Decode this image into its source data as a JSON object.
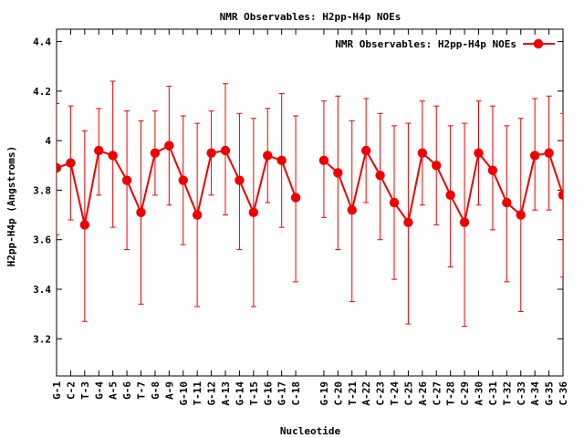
{
  "chart_data": {
    "type": "line",
    "title": "NMR Observables: H2pp-H4p NOEs",
    "xlabel": "Nucleotide",
    "ylabel": "H2pp-H4p (Angstroms)",
    "ylim": [
      3.05,
      4.45
    ],
    "yticks": [
      "3.2",
      "3.4",
      "3.6",
      "3.8",
      "4",
      "4.2",
      "4.4"
    ],
    "grid": false,
    "legend": {
      "label": "NMR Observables: H2pp-H4p NOEs",
      "position": "top-right"
    },
    "colors": {
      "series": "#ee0000",
      "axis": "#000000"
    },
    "series": [
      {
        "name": "NMR Observables: H2pp-H4p NOEs",
        "points": [
          {
            "x": 1,
            "label": "G-1",
            "y": 3.89,
            "err": [
              3.62,
              4.15
            ]
          },
          {
            "x": 2,
            "label": "C-2",
            "y": 3.91,
            "err": [
              3.68,
              4.14
            ]
          },
          {
            "x": 3,
            "label": "T-3",
            "y": 3.66,
            "err": [
              3.27,
              4.04
            ]
          },
          {
            "x": 4,
            "label": "G-4",
            "y": 3.96,
            "err": [
              3.78,
              4.13
            ]
          },
          {
            "x": 5,
            "label": "A-5",
            "y": 3.94,
            "err": [
              3.65,
              4.24
            ]
          },
          {
            "x": 6,
            "label": "G-6",
            "y": 3.84,
            "err": [
              3.56,
              4.12
            ]
          },
          {
            "x": 7,
            "label": "T-7",
            "y": 3.71,
            "err": [
              3.34,
              4.08
            ]
          },
          {
            "x": 8,
            "label": "G-8",
            "y": 3.95,
            "err": [
              3.78,
              4.12
            ]
          },
          {
            "x": 9,
            "label": "A-9",
            "y": 3.98,
            "err": [
              3.74,
              4.22
            ]
          },
          {
            "x": 10,
            "label": "G-10",
            "y": 3.84,
            "err": [
              3.58,
              4.1
            ]
          },
          {
            "x": 11,
            "label": "T-11",
            "y": 3.7,
            "err": [
              3.33,
              4.07
            ]
          },
          {
            "x": 12,
            "label": "G-12",
            "y": 3.95,
            "err": [
              3.78,
              4.12
            ]
          },
          {
            "x": 13,
            "label": "A-13",
            "y": 3.96,
            "err": [
              3.7,
              4.23
            ]
          },
          {
            "x": 14,
            "label": "G-14",
            "y": 3.84,
            "err": [
              3.56,
              4.11
            ]
          },
          {
            "x": 15,
            "label": "T-15",
            "y": 3.71,
            "err": [
              3.33,
              4.09
            ]
          },
          {
            "x": 16,
            "label": "G-16",
            "y": 3.94,
            "err": [
              3.75,
              4.13
            ]
          },
          {
            "x": 17,
            "label": "G-17",
            "y": 3.92,
            "err": [
              3.65,
              4.19
            ]
          },
          {
            "x": 18,
            "label": "C-18",
            "y": 3.77,
            "err": [
              3.43,
              4.1
            ]
          },
          {
            "x": 20,
            "label": "G-19",
            "y": 3.92,
            "err": [
              3.69,
              4.16
            ]
          },
          {
            "x": 21,
            "label": "C-20",
            "y": 3.87,
            "err": [
              3.56,
              4.18
            ]
          },
          {
            "x": 22,
            "label": "T-21",
            "y": 3.72,
            "err": [
              3.35,
              4.08
            ]
          },
          {
            "x": 23,
            "label": "A-22",
            "y": 3.96,
            "err": [
              3.75,
              4.17
            ]
          },
          {
            "x": 24,
            "label": "C-23",
            "y": 3.86,
            "err": [
              3.6,
              4.11
            ]
          },
          {
            "x": 25,
            "label": "T-24",
            "y": 3.75,
            "err": [
              3.44,
              4.06
            ]
          },
          {
            "x": 26,
            "label": "C-25",
            "y": 3.67,
            "err": [
              3.26,
              4.07
            ]
          },
          {
            "x": 27,
            "label": "A-26",
            "y": 3.95,
            "err": [
              3.74,
              4.16
            ]
          },
          {
            "x": 28,
            "label": "C-27",
            "y": 3.9,
            "err": [
              3.66,
              4.14
            ]
          },
          {
            "x": 29,
            "label": "T-28",
            "y": 3.78,
            "err": [
              3.49,
              4.06
            ]
          },
          {
            "x": 30,
            "label": "C-29",
            "y": 3.67,
            "err": [
              3.25,
              4.07
            ]
          },
          {
            "x": 31,
            "label": "A-30",
            "y": 3.95,
            "err": [
              3.74,
              4.16
            ]
          },
          {
            "x": 32,
            "label": "C-31",
            "y": 3.88,
            "err": [
              3.64,
              4.14
            ]
          },
          {
            "x": 33,
            "label": "T-32",
            "y": 3.75,
            "err": [
              3.43,
              4.06
            ]
          },
          {
            "x": 34,
            "label": "C-33",
            "y": 3.7,
            "err": [
              3.31,
              4.09
            ]
          },
          {
            "x": 35,
            "label": "A-34",
            "y": 3.94,
            "err": [
              3.72,
              4.17
            ]
          },
          {
            "x": 36,
            "label": "G-35",
            "y": 3.95,
            "err": [
              3.72,
              4.18
            ]
          },
          {
            "x": 37,
            "label": "C-36",
            "y": 3.78,
            "err": [
              3.45,
              4.11
            ]
          }
        ]
      }
    ]
  }
}
